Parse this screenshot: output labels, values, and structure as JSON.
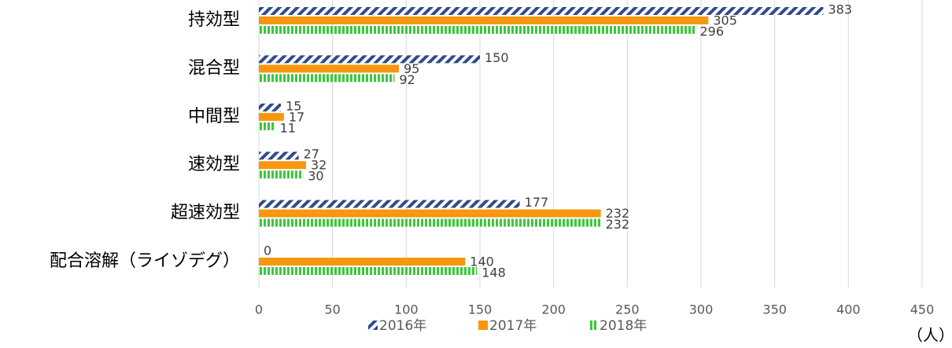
{
  "chart_data": {
    "type": "hbar",
    "categories": [
      "持効型",
      "混合型",
      "中間型",
      "速効型",
      "超速効型",
      "配合溶解（ライゾデグ）"
    ],
    "series": [
      {
        "name": "2016年",
        "color": "#2f4b8a",
        "pattern": "diagonal",
        "values": [
          383,
          150,
          15,
          27,
          177,
          0
        ]
      },
      {
        "name": "2017年",
        "color": "#f7960f",
        "pattern": "solid",
        "values": [
          305,
          95,
          17,
          32,
          232,
          140
        ]
      },
      {
        "name": "2018年",
        "color": "#3ac93a",
        "pattern": "vertical",
        "values": [
          296,
          92,
          11,
          30,
          232,
          148
        ]
      }
    ],
    "xlim": [
      0,
      450
    ],
    "xticks": [
      0,
      50,
      100,
      150,
      200,
      250,
      300,
      350,
      400,
      450
    ],
    "x_label": "（人）",
    "grid": true,
    "legend": "bottom"
  }
}
